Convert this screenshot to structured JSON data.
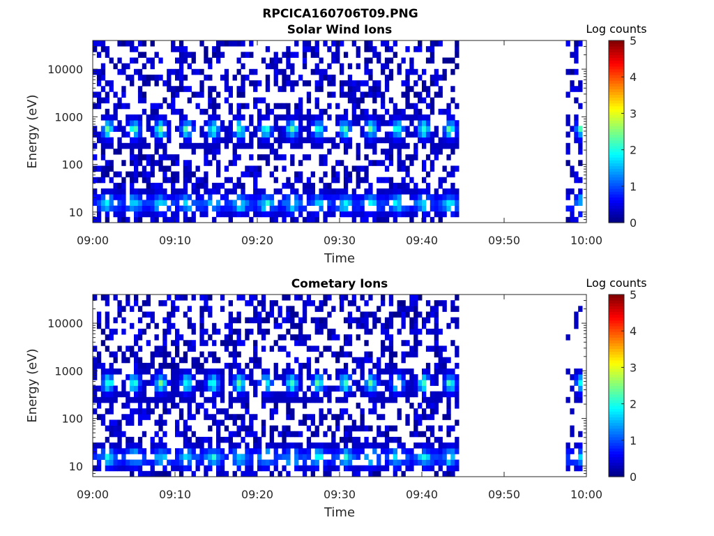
{
  "figure_title": "RPCICA160706T09.PNG",
  "chart_data": [
    {
      "type": "heatmap",
      "title": "Solar Wind Ions",
      "xlabel": "Time",
      "ylabel": "Energy (eV)",
      "x_range": [
        "09:00",
        "10:00"
      ],
      "y_range": [
        6,
        40000
      ],
      "y_scale": "log",
      "x_tick_labels": [
        "09:00",
        "09:10",
        "09:20",
        "09:30",
        "09:40",
        "09:50",
        "10:00"
      ],
      "y_tick_values": [
        10,
        100,
        1000,
        10000
      ],
      "y_tick_labels": [
        "10",
        "100",
        "1000",
        "10000"
      ],
      "colorbar": {
        "title": "Log counts",
        "range": [
          0,
          5
        ],
        "tick_labels": [
          "0",
          "1",
          "2",
          "3",
          "4",
          "5"
        ],
        "colormap": "jet"
      },
      "data_segments": [
        {
          "start": "09:00",
          "end": "09:44.5"
        },
        {
          "start": "09:57.5",
          "end": "09:59.5"
        }
      ],
      "data_gap": {
        "start": "09:44.5",
        "end": "09:57.5"
      },
      "features": {
        "band_energy_eV": 550,
        "band_peak_log_counts": 2.2,
        "low_energy_band_eV": 15,
        "low_energy_peak_log_counts": 2.0,
        "band_period_minutes": 3.2
      }
    },
    {
      "type": "heatmap",
      "title": "Cometary Ions",
      "xlabel": "Time",
      "ylabel": "Energy (eV)",
      "x_range": [
        "09:00",
        "10:00"
      ],
      "y_range": [
        6,
        40000
      ],
      "y_scale": "log",
      "x_tick_labels": [
        "09:00",
        "09:10",
        "09:20",
        "09:30",
        "09:40",
        "09:50",
        "10:00"
      ],
      "y_tick_values": [
        10,
        100,
        1000,
        10000
      ],
      "y_tick_labels": [
        "10",
        "100",
        "1000",
        "10000"
      ],
      "colorbar": {
        "title": "Log counts",
        "range": [
          0,
          5
        ],
        "tick_labels": [
          "0",
          "1",
          "2",
          "3",
          "4",
          "5"
        ],
        "colormap": "jet"
      },
      "data_segments": [
        {
          "start": "09:00",
          "end": "09:44.5"
        },
        {
          "start": "09:57.5",
          "end": "09:59.5"
        }
      ],
      "data_gap": {
        "start": "09:44.5",
        "end": "09:57.5"
      },
      "features": {
        "band_energy_eV": 550,
        "band_peak_log_counts": 2.2,
        "low_energy_band_eV": 15,
        "low_energy_peak_log_counts": 2.0,
        "band_period_minutes": 3.2
      }
    }
  ]
}
